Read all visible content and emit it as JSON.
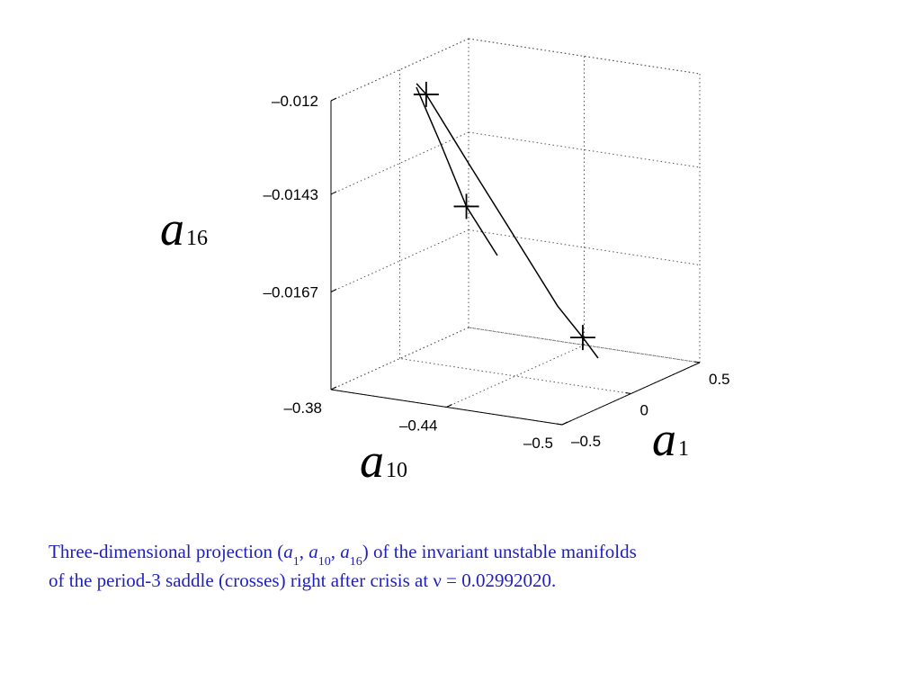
{
  "chart_data": {
    "type": "line3d",
    "xlabel": {
      "var": "a",
      "sub": "1"
    },
    "ylabel": {
      "var": "a",
      "sub": "10"
    },
    "zlabel": {
      "var": "a",
      "sub": "16"
    },
    "xlim": [
      -0.5,
      0.5
    ],
    "ylim": [
      -0.38,
      -0.5
    ],
    "zlim": [
      -0.0191,
      -0.012
    ],
    "xticks": [
      {
        "value": -0.5,
        "label": "–0.5"
      },
      0,
      0.5
    ],
    "yticks": [
      {
        "value": -0.38,
        "label": "–0.38"
      },
      {
        "value": -0.44,
        "label": "–0.44"
      },
      {
        "value": -0.5,
        "label": "–0.5"
      }
    ],
    "zticks": [
      {
        "value": -0.012,
        "label": "–0.012"
      },
      {
        "value": -0.0143,
        "label": "–0.0143"
      },
      {
        "value": -0.0167,
        "label": "–0.0167"
      }
    ],
    "grid": true,
    "series": [
      {
        "color": "#000000",
        "x": [
          -0.22,
          -0.2,
          -0.15,
          -0.1,
          -0.03,
          0,
          0.05
        ],
        "y": [
          -0.4044,
          -0.408,
          -0.426,
          -0.4458,
          -0.4641,
          -0.475,
          -0.4794
        ],
        "z": [
          -0.01183,
          -0.0121,
          -0.01371,
          -0.01541,
          -0.01716,
          -0.0179,
          -0.01845
        ]
      },
      {
        "color": "#000000",
        "x": [
          -0.25,
          -0.28,
          -0.3,
          -0.32
        ],
        "y": [
          -0.4065,
          -0.4213,
          -0.436,
          -0.4535
        ],
        "z": [
          -0.01186,
          -0.0131,
          -0.0145,
          -0.01555
        ]
      }
    ],
    "points": {
      "color": "#000000",
      "x": [
        -0.2,
        -0.3,
        0
      ],
      "y": [
        -0.408,
        -0.436,
        -0.475
      ],
      "z": [
        -0.0121,
        -0.0145,
        -0.0179
      ]
    },
    "caption": [
      [
        {
          "text": "Three-dimensional projection (",
          "style": "plain"
        },
        {
          "text": "a",
          "style": "italic"
        },
        {
          "text": "1",
          "style": "sub"
        },
        {
          "text": ", ",
          "style": "plain"
        },
        {
          "text": "a",
          "style": "italic"
        },
        {
          "text": "10",
          "style": "sub"
        },
        {
          "text": ", ",
          "style": "plain"
        },
        {
          "text": "a",
          "style": "italic"
        },
        {
          "text": "16",
          "style": "sub"
        },
        {
          "text": ") of the invariant unstable manifolds",
          "style": "plain"
        }
      ],
      [
        {
          "text": "of the period-3 saddle (crosses) right after crisis at ν = 0.02992020.",
          "style": "plain"
        }
      ]
    ]
  }
}
